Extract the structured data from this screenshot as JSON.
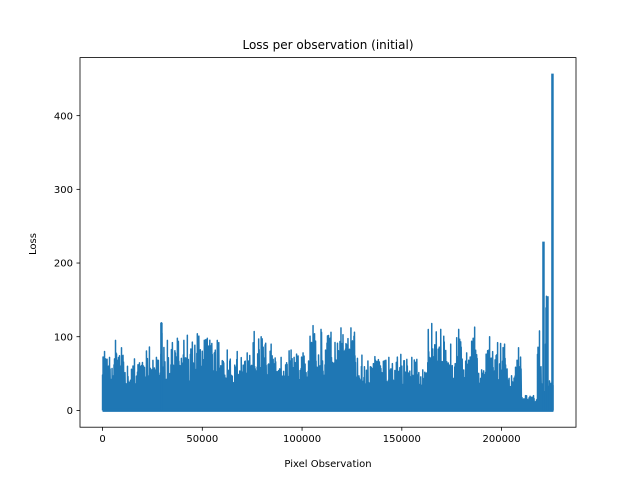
{
  "chart_data": {
    "type": "line",
    "title": "Loss per observation (initial)",
    "xlabel": "Pixel Observation",
    "ylabel": "Loss",
    "xlim": [
      -11300,
      237300
    ],
    "ylim": [
      -22.8,
      478.8
    ],
    "xticks": [
      0,
      50000,
      100000,
      150000,
      200000
    ],
    "xtick_labels": [
      "0",
      "50000",
      "100000",
      "150000",
      "200000"
    ],
    "yticks": [
      0,
      100,
      200,
      300,
      400
    ],
    "ytick_labels": [
      "0",
      "100",
      "200",
      "300",
      "400"
    ],
    "grid": false,
    "legend": "none",
    "series": [
      {
        "color": "#1f77b4",
        "x_range": [
          0,
          226000
        ],
        "floor": 0,
        "segments": [
          {
            "x0": 0,
            "x1": 2000,
            "peak": 80
          },
          {
            "x0": 2000,
            "x1": 5000,
            "peak": 72
          },
          {
            "x0": 5000,
            "x1": 8000,
            "peak": 95
          },
          {
            "x0": 8000,
            "x1": 11000,
            "peak": 85
          },
          {
            "x0": 11000,
            "x1": 14000,
            "peak": 60
          },
          {
            "x0": 14000,
            "x1": 18000,
            "peak": 70
          },
          {
            "x0": 18000,
            "x1": 22000,
            "peak": 65
          },
          {
            "x0": 22000,
            "x1": 25000,
            "peak": 86
          },
          {
            "x0": 25000,
            "x1": 29000,
            "peak": 72
          },
          {
            "x0": 29000,
            "x1": 30000,
            "peak": 119
          },
          {
            "x0": 30000,
            "x1": 35000,
            "peak": 95
          },
          {
            "x0": 35000,
            "x1": 40000,
            "peak": 98
          },
          {
            "x0": 40000,
            "x1": 45000,
            "peak": 102
          },
          {
            "x0": 45000,
            "x1": 50000,
            "peak": 104
          },
          {
            "x0": 50000,
            "x1": 55000,
            "peak": 98
          },
          {
            "x0": 55000,
            "x1": 60000,
            "peak": 95
          },
          {
            "x0": 60000,
            "x1": 65000,
            "peak": 82
          },
          {
            "x0": 65000,
            "x1": 70000,
            "peak": 80
          },
          {
            "x0": 70000,
            "x1": 75000,
            "peak": 78
          },
          {
            "x0": 75000,
            "x1": 77000,
            "peak": 107
          },
          {
            "x0": 77000,
            "x1": 82000,
            "peak": 100
          },
          {
            "x0": 82000,
            "x1": 87000,
            "peak": 90
          },
          {
            "x0": 87000,
            "x1": 92000,
            "peak": 72
          },
          {
            "x0": 92000,
            "x1": 97000,
            "peak": 82
          },
          {
            "x0": 97000,
            "x1": 104000,
            "peak": 78
          },
          {
            "x0": 104000,
            "x1": 107000,
            "peak": 115
          },
          {
            "x0": 107000,
            "x1": 112000,
            "peak": 110
          },
          {
            "x0": 112000,
            "x1": 117000,
            "peak": 106
          },
          {
            "x0": 117000,
            "x1": 122000,
            "peak": 112
          },
          {
            "x0": 122000,
            "x1": 127000,
            "peak": 112
          },
          {
            "x0": 127000,
            "x1": 133000,
            "peak": 75
          },
          {
            "x0": 133000,
            "x1": 140000,
            "peak": 73
          },
          {
            "x0": 140000,
            "x1": 147000,
            "peak": 72
          },
          {
            "x0": 147000,
            "x1": 152000,
            "peak": 76
          },
          {
            "x0": 152000,
            "x1": 158000,
            "peak": 72
          },
          {
            "x0": 158000,
            "x1": 163000,
            "peak": 55
          },
          {
            "x0": 163000,
            "x1": 167000,
            "peak": 118
          },
          {
            "x0": 167000,
            "x1": 172000,
            "peak": 110
          },
          {
            "x0": 172000,
            "x1": 177000,
            "peak": 90
          },
          {
            "x0": 177000,
            "x1": 180000,
            "peak": 110
          },
          {
            "x0": 180000,
            "x1": 185000,
            "peak": 78
          },
          {
            "x0": 185000,
            "x1": 188000,
            "peak": 113
          },
          {
            "x0": 188000,
            "x1": 192000,
            "peak": 55
          },
          {
            "x0": 192000,
            "x1": 196000,
            "peak": 100
          },
          {
            "x0": 196000,
            "x1": 200000,
            "peak": 92
          },
          {
            "x0": 200000,
            "x1": 203000,
            "peak": 90
          },
          {
            "x0": 203000,
            "x1": 207000,
            "peak": 47
          },
          {
            "x0": 207000,
            "x1": 210000,
            "peak": 85
          },
          {
            "x0": 210000,
            "x1": 214000,
            "peak": 20
          },
          {
            "x0": 214000,
            "x1": 218000,
            "peak": 20
          },
          {
            "x0": 218000,
            "x1": 220000,
            "peak": 108
          },
          {
            "x0": 220000,
            "x1": 222000,
            "peak": 40
          },
          {
            "x0": 222000,
            "x1": 223000,
            "peak": 155
          },
          {
            "x0": 223000,
            "x1": 225000,
            "peak": 40
          },
          {
            "x0": 225000,
            "x1": 226000,
            "peak": 35
          }
        ],
        "spikes": [
          {
            "x": 29500,
            "y": 119
          },
          {
            "x": 221000,
            "y": 229
          },
          {
            "x": 223000,
            "y": 155
          },
          {
            "x": 225500,
            "y": 457
          }
        ]
      }
    ]
  }
}
